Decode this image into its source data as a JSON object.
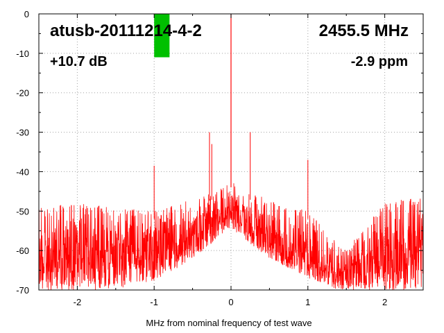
{
  "chart_data": {
    "type": "line",
    "title": "",
    "xlabel": "MHz from nominal frequency of test wave",
    "ylabel": "",
    "xlim": [
      -2.5,
      2.5
    ],
    "ylim": [
      -70,
      0
    ],
    "x_ticks": [
      -2,
      -1,
      0,
      1,
      2
    ],
    "x_tick_labels": [
      "-2",
      "-1",
      "0",
      "1",
      "2"
    ],
    "y_ticks": [
      0,
      -10,
      -20,
      -30,
      -40,
      -50,
      -60,
      -70
    ],
    "y_tick_labels": [
      "0",
      "-10",
      "-20",
      "-30",
      "-40",
      "-50",
      "-60",
      "-70"
    ],
    "grid": true,
    "series_color": "#ff0000",
    "marker_color": "#00c000",
    "annotations": {
      "device": "atusb-20111214-4-2",
      "frequency": "2455.5 MHz",
      "level": "+10.7 dB",
      "offset": "-2.9 ppm"
    },
    "level_bar": {
      "x_range": [
        -1.0,
        -0.8
      ],
      "top_db": 0,
      "bottom_db": -11
    },
    "carrier": {
      "x": 0,
      "peak_db": 0
    },
    "spurs": [
      {
        "x": -1.0,
        "peak_db": -38.5
      },
      {
        "x": -0.28,
        "peak_db": -30
      },
      {
        "x": -0.25,
        "peak_db": -33
      },
      {
        "x": 0.25,
        "peak_db": -30
      },
      {
        "x": 1.0,
        "peak_db": -37
      }
    ],
    "noise_envelope": {
      "x": [
        -2.5,
        -2.0,
        -1.5,
        -1.0,
        -0.5,
        -0.1,
        0.0,
        0.1,
        0.5,
        1.0,
        1.4,
        1.5,
        1.6,
        2.0,
        2.5
      ],
      "upper_db": [
        -51,
        -50,
        -51,
        -52,
        -49,
        -46,
        -44,
        -46,
        -49,
        -52,
        -60,
        -62,
        -59,
        -50,
        -48
      ],
      "lower_db": [
        -70,
        -70,
        -70,
        -68,
        -62,
        -56,
        -54,
        -56,
        -62,
        -67,
        -70,
        -70,
        -70,
        -70,
        -70
      ]
    }
  }
}
